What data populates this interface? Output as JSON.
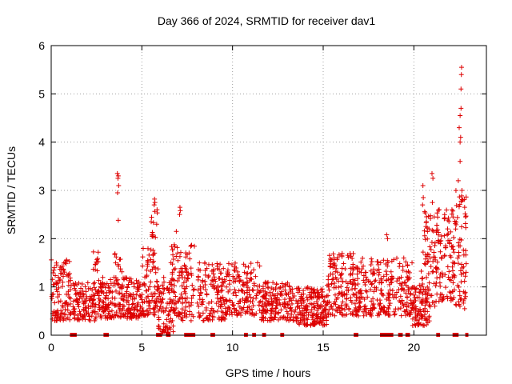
{
  "chart_data": {
    "type": "scatter",
    "title": "Day 366 of 2024, SRMTID for receiver dav1",
    "xlabel": "GPS time / hours",
    "ylabel": "SRMTID / TECUs",
    "xlim": [
      0,
      24
    ],
    "ylim": [
      0,
      6
    ],
    "x_ticks": [
      0,
      5,
      10,
      15,
      20
    ],
    "y_ticks": [
      0,
      1,
      2,
      3,
      4,
      5,
      6
    ],
    "x_tick_labels": [
      "0",
      "5",
      "10",
      "15",
      "20"
    ],
    "y_tick_labels": [
      "0",
      "1",
      "2",
      "3",
      "4",
      "5",
      "6"
    ],
    "grid": true,
    "legend": "none",
    "colors": {
      "marker": "#dd0000",
      "grid": "#a0a0a0",
      "axis": "#000000"
    },
    "series": [
      {
        "name": "SRMTID",
        "marker": "+",
        "bands": [
          {
            "x": [
              0.0,
              1.1
            ],
            "y": [
              0.3,
              1.6
            ],
            "n": 110
          },
          {
            "x": [
              1.2,
              2.6
            ],
            "y": [
              0.3,
              1.1
            ],
            "n": 120
          },
          {
            "x": [
              2.3,
              2.6
            ],
            "y": [
              1.2,
              1.8
            ],
            "n": 12
          },
          {
            "x": [
              2.6,
              5.0
            ],
            "y": [
              0.35,
              1.2
            ],
            "n": 230
          },
          {
            "x": [
              3.5,
              3.9
            ],
            "y": [
              1.3,
              1.75
            ],
            "n": 10
          },
          {
            "x": [
              5.0,
              5.9
            ],
            "y": [
              0.4,
              1.8
            ],
            "n": 90
          },
          {
            "x": [
              5.5,
              5.9
            ],
            "y": [
              2.0,
              2.8
            ],
            "n": 14
          },
          {
            "x": [
              5.9,
              6.8
            ],
            "y": [
              0.05,
              1.2
            ],
            "n": 80
          },
          {
            "x": [
              6.5,
              7.9
            ],
            "y": [
              0.3,
              1.9
            ],
            "n": 120
          },
          {
            "x": [
              8.0,
              9.6
            ],
            "y": [
              0.3,
              1.5
            ],
            "n": 130
          },
          {
            "x": [
              9.6,
              11.5
            ],
            "y": [
              0.4,
              1.5
            ],
            "n": 150
          },
          {
            "x": [
              11.5,
              13.5
            ],
            "y": [
              0.3,
              1.1
            ],
            "n": 170
          },
          {
            "x": [
              13.5,
              15.2
            ],
            "y": [
              0.2,
              1.0
            ],
            "n": 180
          },
          {
            "x": [
              15.2,
              16.8
            ],
            "y": [
              0.4,
              1.7
            ],
            "n": 150
          },
          {
            "x": [
              16.8,
              18.2
            ],
            "y": [
              0.4,
              1.6
            ],
            "n": 120
          },
          {
            "x": [
              18.2,
              19.9
            ],
            "y": [
              0.4,
              1.6
            ],
            "n": 140
          },
          {
            "x": [
              19.9,
              20.9
            ],
            "y": [
              0.2,
              1.1
            ],
            "n": 90
          },
          {
            "x": [
              20.4,
              21.2
            ],
            "y": [
              0.6,
              2.6
            ],
            "n": 70
          },
          {
            "x": [
              21.2,
              22.3
            ],
            "y": [
              0.7,
              2.6
            ],
            "n": 110
          },
          {
            "x": [
              22.3,
              22.9
            ],
            "y": [
              0.6,
              3.0
            ],
            "n": 60
          }
        ],
        "points": [
          {
            "x": 3.65,
            "y": 3.35
          },
          {
            "x": 3.7,
            "y": 3.3
          },
          {
            "x": 3.68,
            "y": 3.25
          },
          {
            "x": 3.72,
            "y": 3.1
          },
          {
            "x": 3.66,
            "y": 2.95
          },
          {
            "x": 3.7,
            "y": 2.38
          },
          {
            "x": 5.7,
            "y": 2.82
          },
          {
            "x": 5.72,
            "y": 2.75
          },
          {
            "x": 5.68,
            "y": 2.7
          },
          {
            "x": 7.1,
            "y": 2.65
          },
          {
            "x": 7.12,
            "y": 2.58
          },
          {
            "x": 7.08,
            "y": 2.5
          },
          {
            "x": 6.9,
            "y": 2.15
          },
          {
            "x": 18.5,
            "y": 2.08
          },
          {
            "x": 18.55,
            "y": 2.0
          },
          {
            "x": 20.5,
            "y": 3.1
          },
          {
            "x": 20.52,
            "y": 2.85
          },
          {
            "x": 20.48,
            "y": 2.7
          },
          {
            "x": 21.0,
            "y": 3.35
          },
          {
            "x": 21.05,
            "y": 3.25
          },
          {
            "x": 21.02,
            "y": 2.75
          },
          {
            "x": 21.4,
            "y": 2.6
          },
          {
            "x": 22.1,
            "y": 2.6
          },
          {
            "x": 22.45,
            "y": 3.2
          },
          {
            "x": 22.55,
            "y": 3.6
          },
          {
            "x": 22.55,
            "y": 4.0
          },
          {
            "x": 22.58,
            "y": 4.1
          },
          {
            "x": 22.5,
            "y": 4.3
          },
          {
            "x": 22.55,
            "y": 4.55
          },
          {
            "x": 22.6,
            "y": 4.7
          },
          {
            "x": 22.6,
            "y": 5.1
          },
          {
            "x": 22.62,
            "y": 5.4
          },
          {
            "x": 22.63,
            "y": 5.55
          },
          {
            "x": 22.65,
            "y": 3.0
          },
          {
            "x": 22.7,
            "y": 2.8
          },
          {
            "x": 22.8,
            "y": 2.65
          },
          {
            "x": 22.85,
            "y": 2.45
          },
          {
            "x": 22.8,
            "y": 0.55
          },
          {
            "x": 22.85,
            "y": 0.8
          },
          {
            "x": 22.75,
            "y": 0.9
          }
        ],
        "zero_runs": [
          [
            1.1,
            1.35
          ],
          [
            2.95,
            3.15
          ],
          [
            5.85,
            6.05
          ],
          [
            6.4,
            6.55
          ],
          [
            7.4,
            7.9
          ],
          [
            8.85,
            9.0
          ],
          [
            10.7,
            10.8
          ],
          [
            11.15,
            11.25
          ],
          [
            11.7,
            11.8
          ],
          [
            12.7,
            12.8
          ],
          [
            16.75,
            16.9
          ],
          [
            18.2,
            18.8
          ],
          [
            19.2,
            19.35
          ],
          [
            19.6,
            19.75
          ],
          [
            21.3,
            21.4
          ],
          [
            22.2,
            22.4
          ],
          [
            22.9,
            22.95
          ]
        ]
      }
    ]
  }
}
